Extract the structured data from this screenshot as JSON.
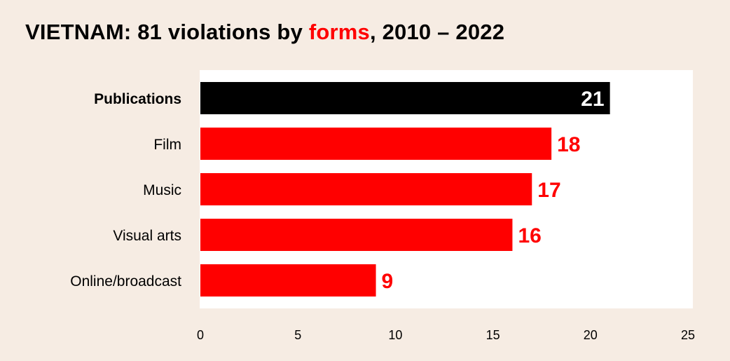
{
  "title": {
    "before": "VIETNAM: 81 violations by ",
    "highlight": "forms",
    "after": ", 2010 – 2022"
  },
  "colors": {
    "background": "#f6ece3",
    "plot_background": "#ffffff",
    "highlight_bar": "#000000",
    "bar": "#ff0000",
    "highlight_text": "#ff0000"
  },
  "chart_data": {
    "type": "bar",
    "orientation": "horizontal",
    "categories": [
      "Publications",
      "Film",
      "Music",
      "Visual arts",
      "Online/broadcast"
    ],
    "values": [
      21,
      18,
      17,
      16,
      9
    ],
    "highlighted_category": "Publications",
    "xlim": [
      0,
      25
    ],
    "xticks": [
      0,
      5,
      10,
      15,
      20,
      25
    ],
    "xlabel": "",
    "ylabel": "",
    "grid": false,
    "legend": "none"
  }
}
